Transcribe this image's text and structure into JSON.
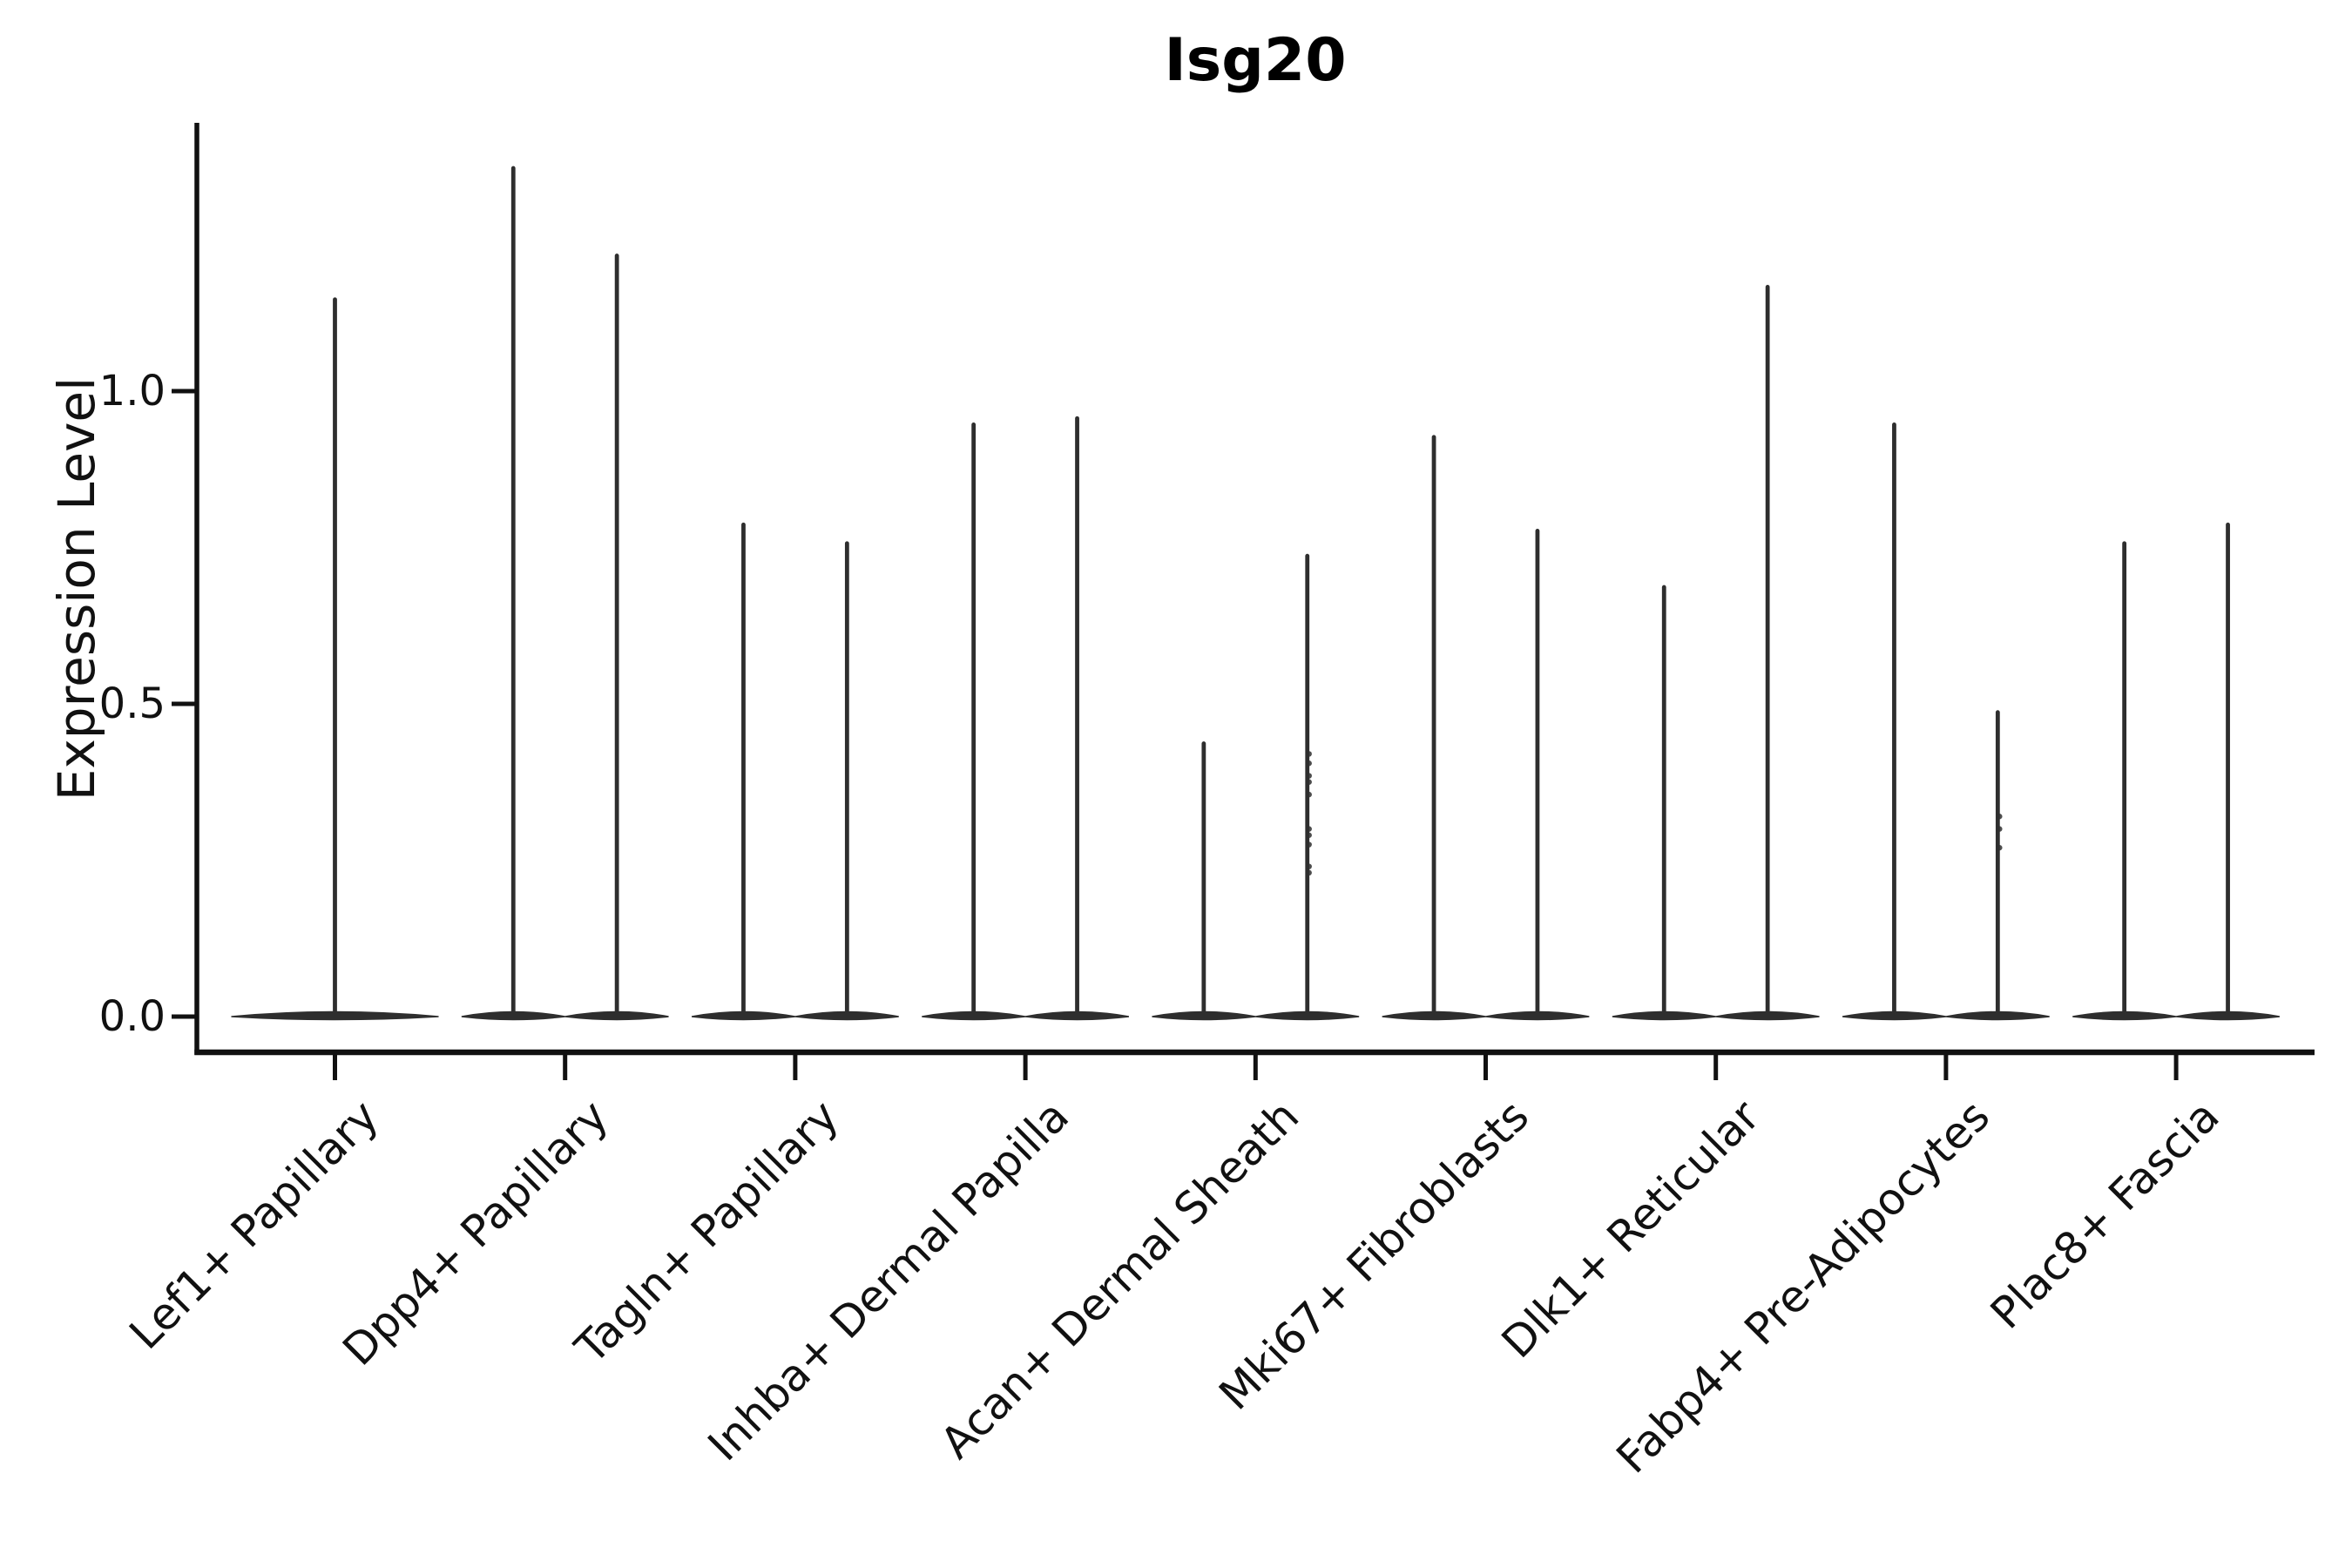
{
  "figure": {
    "background": "#ffffff",
    "ink_color": "#111111",
    "violin_color": "#2e2e2e"
  },
  "chart_data": {
    "type": "violin",
    "title": "Isg20",
    "xlabel": "",
    "ylabel": "Expression Level",
    "ylim": [
      -0.06,
      1.43
    ],
    "grid": false,
    "legend": null,
    "yticks": [
      {
        "value": 0.0,
        "label": "0.0"
      },
      {
        "value": 0.5,
        "label": "0.5"
      },
      {
        "value": 1.0,
        "label": "1.0"
      }
    ],
    "categories": [
      "Lef1+ Papillary",
      "Dpp4+ Papillary",
      "Tagln+ Papillary",
      "Inhba+ Dermal Papilla",
      "Acan+ Dermal Sheath",
      "Mki67+ Fibroblasts",
      "Dlk1+ Reticular",
      "Fabp4+ Pre-Adipocytes",
      "Plac8+ Fascia"
    ],
    "description": "Violin plot of Isg20 expression per fibroblast subtype; each violin collapses to a flat base at 0 with a thin density spike reaching the maximum expressing cells. Most categories contain two side-by-side violins (split groups); the first has a single centered violin.",
    "violins": [
      {
        "category": "Lef1+ Papillary",
        "spikes": [
          {
            "offset": 0.0,
            "max": 1.15,
            "points": []
          }
        ]
      },
      {
        "category": "Dpp4+ Papillary",
        "spikes": [
          {
            "offset": -0.225,
            "max": 1.36,
            "points": []
          },
          {
            "offset": 0.225,
            "max": 1.22,
            "points": []
          }
        ]
      },
      {
        "category": "Tagln+ Papillary",
        "spikes": [
          {
            "offset": -0.225,
            "max": 0.79,
            "points": []
          },
          {
            "offset": 0.225,
            "max": 0.76,
            "points": []
          }
        ]
      },
      {
        "category": "Inhba+ Dermal Papilla",
        "spikes": [
          {
            "offset": -0.225,
            "max": 0.95,
            "points": []
          },
          {
            "offset": 0.225,
            "max": 0.96,
            "points": []
          }
        ]
      },
      {
        "category": "Acan+ Dermal Sheath",
        "spikes": [
          {
            "offset": -0.225,
            "max": 0.44,
            "points": []
          },
          {
            "offset": 0.225,
            "max": 0.74,
            "points": [
              0.42,
              0.405,
              0.385,
              0.375,
              0.355,
              0.3,
              0.29,
              0.275,
              0.24,
              0.23
            ]
          }
        ]
      },
      {
        "category": "Mki67+ Fibroblasts",
        "spikes": [
          {
            "offset": -0.225,
            "max": 0.93,
            "points": []
          },
          {
            "offset": 0.225,
            "max": 0.78,
            "points": []
          }
        ]
      },
      {
        "category": "Dlk1+ Reticular",
        "spikes": [
          {
            "offset": -0.225,
            "max": 0.69,
            "points": []
          },
          {
            "offset": 0.225,
            "max": 1.17,
            "points": []
          }
        ]
      },
      {
        "category": "Fabp4+ Pre-Adipocytes",
        "spikes": [
          {
            "offset": -0.225,
            "max": 0.95,
            "points": []
          },
          {
            "offset": 0.225,
            "max": 0.49,
            "points": [
              0.32,
              0.3,
              0.27
            ]
          }
        ]
      },
      {
        "category": "Plac8+ Fascia",
        "spikes": [
          {
            "offset": -0.225,
            "max": 0.76,
            "points": []
          },
          {
            "offset": 0.225,
            "max": 0.79,
            "points": []
          }
        ]
      }
    ]
  }
}
